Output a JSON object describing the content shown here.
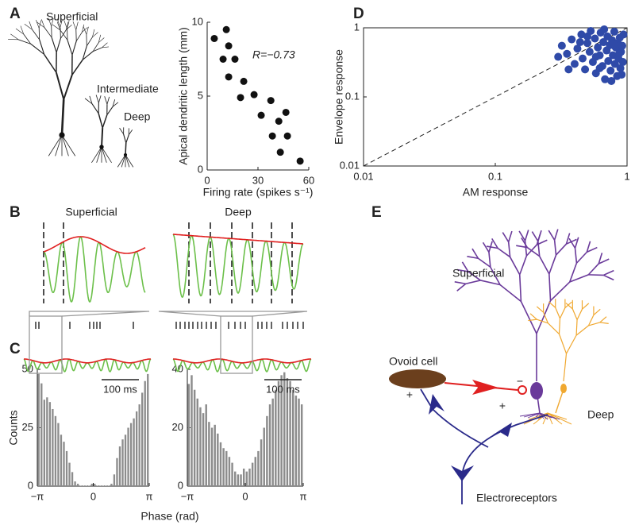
{
  "panel_letters": [
    "A",
    "B",
    "C",
    "D",
    "E"
  ],
  "neuron_labels": [
    "Superficial",
    "Intermediate",
    "Deep"
  ],
  "panel_b": {
    "titles": [
      "Superficial",
      "Deep"
    ],
    "scale_bars": [
      "100 ms",
      "100 ms"
    ]
  },
  "panel_e": {
    "labels": [
      "Superficial",
      "Ovoid cell",
      "Deep",
      "Electroreceptors"
    ],
    "signs": [
      "−",
      "+",
      "+"
    ]
  },
  "chart_data": [
    {
      "type": "scatter",
      "x_label": "Firing rate (spikes s⁻¹)",
      "y_label": "Apical dendritic length (mm)",
      "annotation": "R=−0.73",
      "color": "#111111",
      "x": [
        4.2,
        11.3,
        12.7,
        9.4,
        16.4,
        12.7,
        21.6,
        19.7,
        27.7,
        31.9,
        37.6,
        46.5,
        42.3,
        38.5,
        47.4,
        43.2,
        54.9
      ],
      "values": [
        8.9,
        9.5,
        8.4,
        7.5,
        7.5,
        6.3,
        6.0,
        4.9,
        5.1,
        3.7,
        4.7,
        3.9,
        3.3,
        2.3,
        2.3,
        1.2,
        0.6
      ],
      "xlim": [
        0,
        60
      ],
      "xticks": [
        0,
        30,
        60
      ],
      "ylim": [
        0,
        10
      ],
      "yticks": [
        0,
        5,
        10
      ]
    },
    {
      "type": "scatter",
      "x_label": "AM response",
      "y_label": "Envelope response",
      "color": "#2f4aa8",
      "xscale": "log",
      "yscale": "log",
      "x": [
        0.32,
        0.35,
        0.38,
        0.4,
        0.42,
        0.45,
        0.46,
        0.48,
        0.5,
        0.52,
        0.53,
        0.55,
        0.57,
        0.58,
        0.6,
        0.62,
        0.63,
        0.65,
        0.66,
        0.68,
        0.7,
        0.71,
        0.72,
        0.74,
        0.75,
        0.77,
        0.78,
        0.8,
        0.81,
        0.82,
        0.84,
        0.85,
        0.86,
        0.88,
        0.89,
        0.9,
        0.92,
        0.93,
        0.94,
        0.36,
        0.44,
        0.58,
        0.67,
        0.76,
        0.87,
        0.3,
        0.5,
        0.62,
        0.79,
        0.91
      ],
      "values": [
        0.55,
        0.42,
        0.68,
        0.3,
        0.5,
        0.8,
        0.36,
        0.25,
        0.6,
        0.45,
        0.9,
        0.32,
        0.7,
        0.22,
        0.52,
        0.4,
        0.85,
        0.28,
        0.62,
        0.18,
        0.47,
        0.75,
        0.33,
        0.56,
        0.24,
        0.66,
        0.4,
        0.88,
        0.3,
        0.52,
        0.2,
        0.6,
        0.36,
        0.72,
        0.26,
        0.45,
        0.55,
        0.32,
        0.8,
        0.25,
        0.62,
        0.38,
        0.95,
        0.17,
        0.42,
        0.38,
        0.75,
        0.26,
        0.58,
        0.21
      ],
      "xlim": [
        0.01,
        1
      ],
      "xticks": [
        0.01,
        0.1,
        1
      ],
      "ylim": [
        0.01,
        1
      ],
      "yticks": [
        0.01,
        0.1,
        1
      ]
    },
    {
      "type": "histogram",
      "x_label": "Phase (rad)",
      "y_label": "Counts",
      "color": "#8c8c8c",
      "bins": [
        -3.1416,
        -2.9845,
        -2.8274,
        -2.6704,
        -2.5133,
        -2.3562,
        -2.1991,
        -2.042,
        -1.885,
        -1.7279,
        -1.5708,
        -1.4137,
        -1.2566,
        -1.0996,
        -0.9425,
        -0.7854,
        -0.6283,
        -0.4712,
        -0.3142,
        -0.1571,
        0,
        0.1571,
        0.3142,
        0.4712,
        0.6283,
        0.7854,
        0.9425,
        1.0996,
        1.2566,
        1.4137,
        1.5708,
        1.7279,
        1.885,
        2.042,
        2.1991,
        2.3562,
        2.5133,
        2.6704,
        2.8274,
        2.9845,
        3.1416
      ],
      "values": [
        48,
        44,
        37,
        38,
        36,
        33,
        30,
        27,
        22,
        19,
        15,
        10,
        6,
        2,
        1,
        0,
        0,
        0,
        0,
        1,
        1,
        0,
        0,
        0,
        0,
        0,
        1,
        5,
        12,
        17,
        20,
        22,
        25,
        27,
        29,
        32,
        35,
        40,
        45,
        48
      ],
      "xlim": [
        -3.1416,
        3.1416
      ],
      "xticks": [
        {
          "value": -3.1416,
          "label": "−π"
        },
        0,
        {
          "value": 3.1416,
          "label": "π"
        }
      ],
      "ylim": [
        0,
        50
      ],
      "yticks": [
        0,
        25,
        50
      ]
    },
    {
      "type": "histogram",
      "color": "#8c8c8c",
      "bins": [
        -3.1416,
        -2.9845,
        -2.8274,
        -2.6704,
        -2.5133,
        -2.3562,
        -2.1991,
        -2.042,
        -1.885,
        -1.7279,
        -1.5708,
        -1.4137,
        -1.2566,
        -1.0996,
        -0.9425,
        -0.7854,
        -0.6283,
        -0.4712,
        -0.3142,
        -0.1571,
        0,
        0.1571,
        0.3142,
        0.4712,
        0.6283,
        0.7854,
        0.9425,
        1.0996,
        1.2566,
        1.4137,
        1.5708,
        1.7279,
        1.885,
        2.042,
        2.1991,
        2.3562,
        2.5133,
        2.6704,
        2.8274,
        2.9845,
        3.1416
      ],
      "values": [
        35,
        38,
        33,
        30,
        27,
        25,
        28,
        22,
        20,
        21,
        18,
        15,
        13,
        12,
        10,
        8,
        5,
        4,
        4,
        6,
        5,
        6,
        8,
        10,
        12,
        16,
        20,
        24,
        28,
        30,
        33,
        36,
        38,
        39,
        37,
        36,
        33,
        31,
        30,
        28
      ],
      "xlim": [
        -3.1416,
        3.1416
      ],
      "xticks": [
        {
          "value": -3.1416,
          "label": "−π"
        },
        0,
        {
          "value": 3.1416,
          "label": "π"
        }
      ],
      "ylim": [
        0,
        40
      ],
      "yticks": [
        0,
        20,
        40
      ]
    }
  ]
}
